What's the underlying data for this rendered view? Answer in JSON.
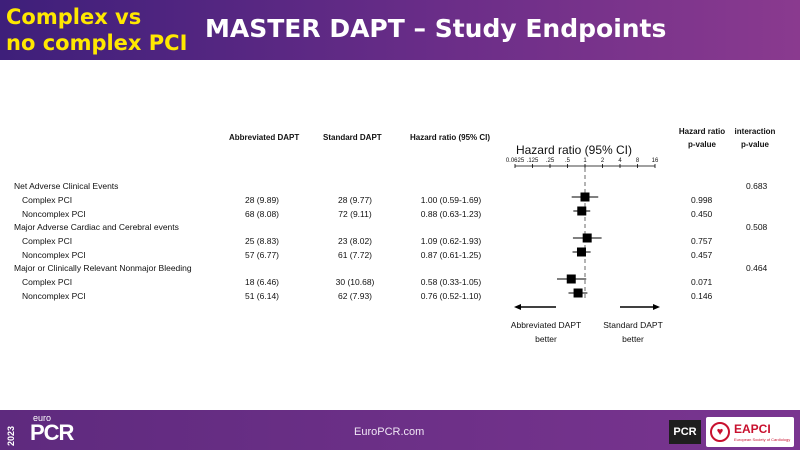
{
  "header": {
    "tag_line1": "Complex vs",
    "tag_line2": "no complex PCI",
    "title": "MASTER DAPT – Study Endpoints"
  },
  "colors": {
    "header_start": "#3e1f7a",
    "header_end": "#8a3a8f",
    "tag": "#ffe800",
    "marker": "#000000"
  },
  "columns": {
    "abbreviated": "Abbreviated DAPT",
    "standard": "Standard DAPT",
    "hr": "Hazard ratio (95% CI)",
    "hr_p_line1": "Hazard ratio",
    "hr_p_line2": "p-value",
    "int_p_line1": "interaction",
    "int_p_line2": "p-value"
  },
  "endpoints": [
    {
      "name": "Net Adverse Clinical Events",
      "interaction_p": "0.683",
      "rows": [
        {
          "label": "Complex PCI",
          "abbreviated": "28 (9.89)",
          "standard": "28 (9.77)",
          "hr_text": "1.00 (0.59-1.69)",
          "p": "0.998"
        },
        {
          "label": "Noncomplex PCI",
          "abbreviated": "68 (8.08)",
          "standard": "72 (9.11)",
          "hr_text": "0.88 (0.63-1.23)",
          "p": "0.450"
        }
      ]
    },
    {
      "name": "Major Adverse Cardiac and Cerebral events",
      "interaction_p": "0.508",
      "rows": [
        {
          "label": "Complex PCI",
          "abbreviated": "25 (8.83)",
          "standard": "23 (8.02)",
          "hr_text": "1.09 (0.62-1.93)",
          "p": "0.757"
        },
        {
          "label": "Noncomplex PCI",
          "abbreviated": "57 (6.77)",
          "standard": "61 (7.72)",
          "hr_text": "0.87 (0.61-1.25)",
          "p": "0.457"
        }
      ]
    },
    {
      "name": "Major or Clinically Relevant Nonmajor Bleeding",
      "interaction_p": "0.464",
      "rows": [
        {
          "label": "Complex PCI",
          "abbreviated": "18 (6.46)",
          "standard": "30 (10.68)",
          "hr_text": "0.58 (0.33-1.05)",
          "p": "0.071"
        },
        {
          "label": "Noncomplex PCI",
          "abbreviated": "51 (6.14)",
          "standard": "62 (7.93)",
          "hr_text": "0.76 (0.52-1.10)",
          "p": "0.146"
        }
      ]
    }
  ],
  "chart_data": {
    "type": "scatter",
    "title": "Hazard ratio (95% CI)",
    "x_scale": "log2",
    "xlim": [
      0.0625,
      16
    ],
    "x_ticks": [
      "0.0625",
      ".125",
      ".25",
      ".5",
      "1",
      "2",
      "4",
      "8",
      "16"
    ],
    "reference_line": 1,
    "points": [
      {
        "hr": 1.0,
        "lo": 0.59,
        "hi": 1.69
      },
      {
        "hr": 0.88,
        "lo": 0.63,
        "hi": 1.23
      },
      {
        "hr": 1.09,
        "lo": 0.62,
        "hi": 1.93
      },
      {
        "hr": 0.87,
        "lo": 0.61,
        "hi": 1.25
      },
      {
        "hr": 0.58,
        "lo": 0.33,
        "hi": 1.05
      },
      {
        "hr": 0.76,
        "lo": 0.52,
        "hi": 1.1
      }
    ],
    "left_label_line1": "Abbreviated DAPT",
    "left_label_line2": "better",
    "right_label_line1": "Standard DAPT",
    "right_label_line2": "better"
  },
  "footer": {
    "year": "2023",
    "brand_small": "euro",
    "brand": "PCR",
    "site": "EuroPCR.com",
    "pcr_badge": "PCR",
    "eapci": "EAPCI",
    "eapci_sub": "European Society of Cardiology"
  }
}
